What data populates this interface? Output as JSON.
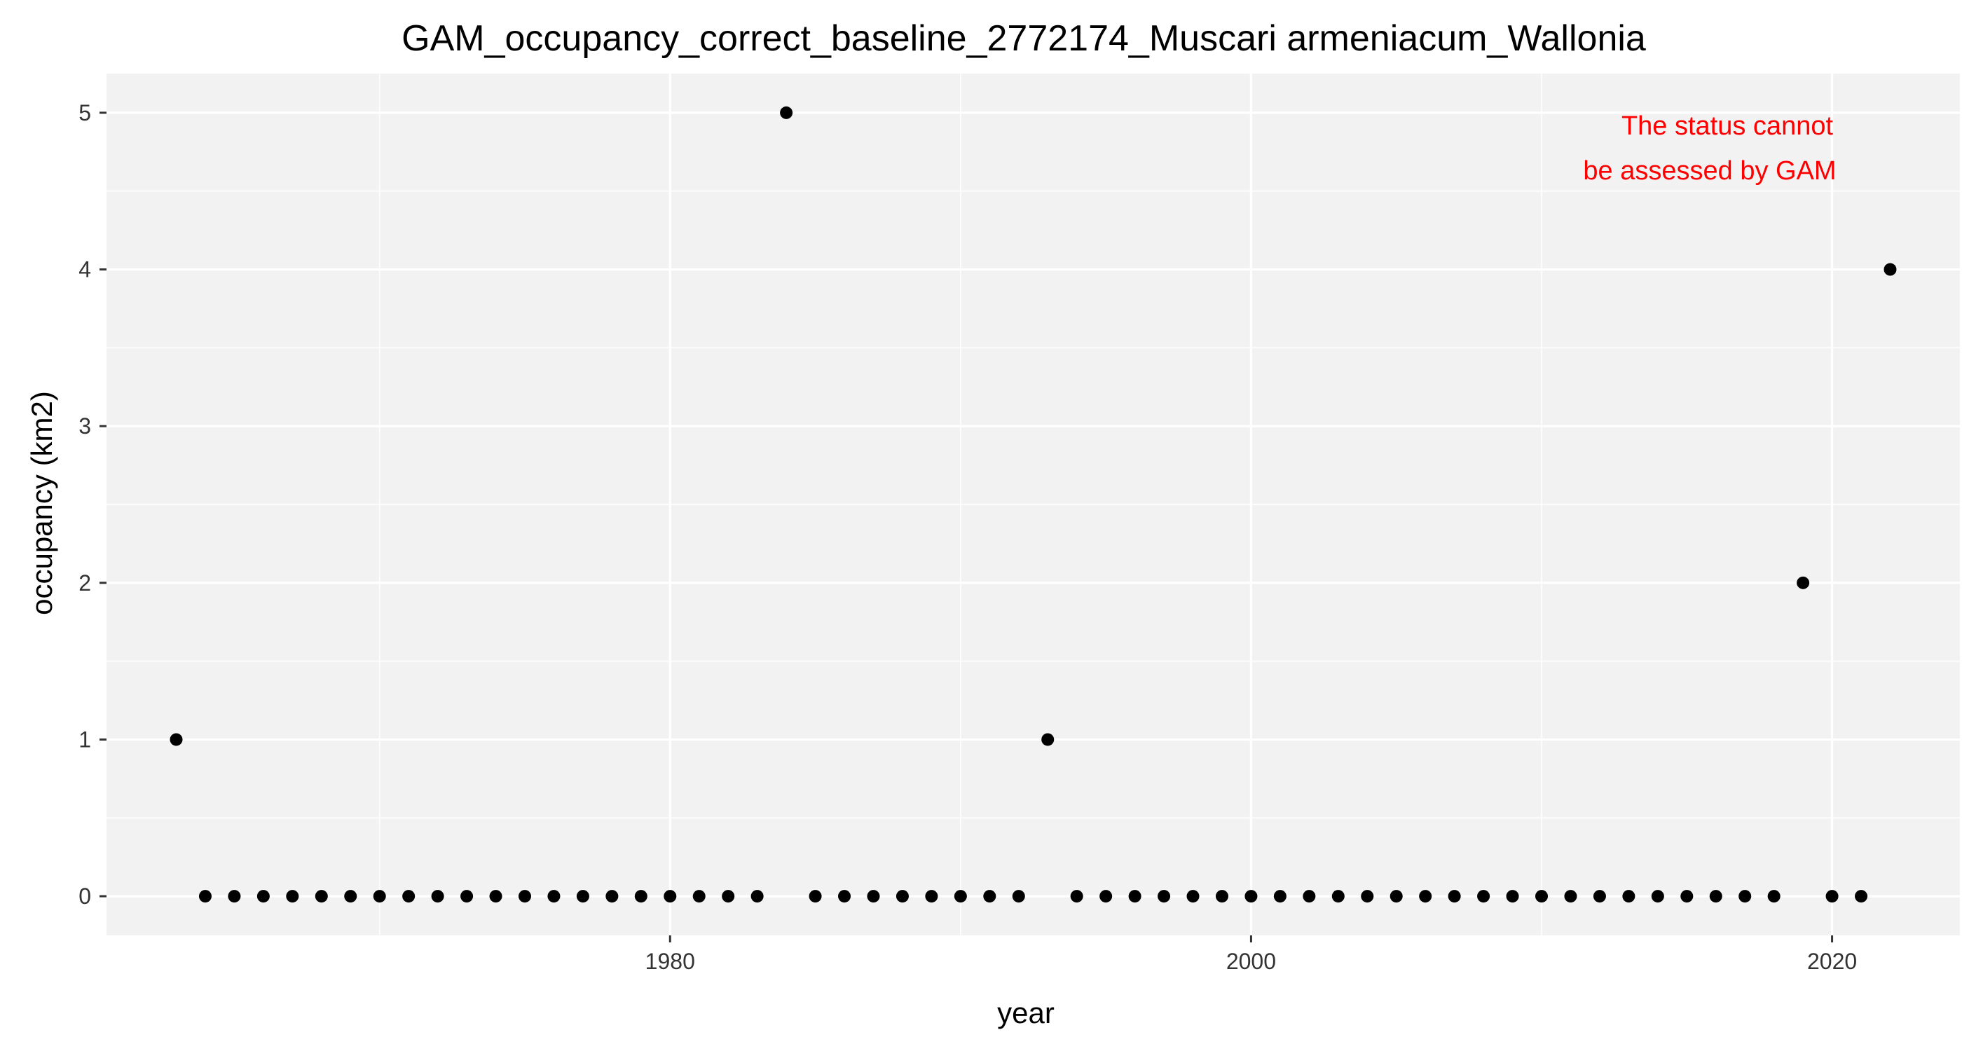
{
  "chart_data": {
    "type": "scatter",
    "title": "GAM_occupancy_correct_baseline_2772174_Muscari armeniacum_Wallonia",
    "xlabel": "year",
    "ylabel": "occupancy (km2)",
    "xlim": [
      1960.6,
      2024.4
    ],
    "ylim": [
      -0.25,
      5.25
    ],
    "x_ticks": [
      1980,
      2000,
      2020
    ],
    "y_ticks": [
      0,
      1,
      2,
      3,
      4,
      5
    ],
    "grid": true,
    "annotation": {
      "lines": [
        "The status cannot",
        "be assessed by GAM"
      ],
      "color": "#ff0000",
      "placement": "top-right"
    },
    "points": [
      {
        "x": 1963,
        "y": 1
      },
      {
        "x": 1964,
        "y": 0
      },
      {
        "x": 1965,
        "y": 0
      },
      {
        "x": 1966,
        "y": 0
      },
      {
        "x": 1967,
        "y": 0
      },
      {
        "x": 1968,
        "y": 0
      },
      {
        "x": 1969,
        "y": 0
      },
      {
        "x": 1970,
        "y": 0
      },
      {
        "x": 1971,
        "y": 0
      },
      {
        "x": 1972,
        "y": 0
      },
      {
        "x": 1973,
        "y": 0
      },
      {
        "x": 1974,
        "y": 0
      },
      {
        "x": 1975,
        "y": 0
      },
      {
        "x": 1976,
        "y": 0
      },
      {
        "x": 1977,
        "y": 0
      },
      {
        "x": 1978,
        "y": 0
      },
      {
        "x": 1979,
        "y": 0
      },
      {
        "x": 1980,
        "y": 0
      },
      {
        "x": 1981,
        "y": 0
      },
      {
        "x": 1982,
        "y": 0
      },
      {
        "x": 1983,
        "y": 0
      },
      {
        "x": 1984,
        "y": 5
      },
      {
        "x": 1985,
        "y": 0
      },
      {
        "x": 1986,
        "y": 0
      },
      {
        "x": 1987,
        "y": 0
      },
      {
        "x": 1988,
        "y": 0
      },
      {
        "x": 1989,
        "y": 0
      },
      {
        "x": 1990,
        "y": 0
      },
      {
        "x": 1991,
        "y": 0
      },
      {
        "x": 1992,
        "y": 0
      },
      {
        "x": 1993,
        "y": 1
      },
      {
        "x": 1994,
        "y": 0
      },
      {
        "x": 1995,
        "y": 0
      },
      {
        "x": 1996,
        "y": 0
      },
      {
        "x": 1997,
        "y": 0
      },
      {
        "x": 1998,
        "y": 0
      },
      {
        "x": 1999,
        "y": 0
      },
      {
        "x": 2000,
        "y": 0
      },
      {
        "x": 2001,
        "y": 0
      },
      {
        "x": 2002,
        "y": 0
      },
      {
        "x": 2003,
        "y": 0
      },
      {
        "x": 2004,
        "y": 0
      },
      {
        "x": 2005,
        "y": 0
      },
      {
        "x": 2006,
        "y": 0
      },
      {
        "x": 2007,
        "y": 0
      },
      {
        "x": 2008,
        "y": 0
      },
      {
        "x": 2009,
        "y": 0
      },
      {
        "x": 2010,
        "y": 0
      },
      {
        "x": 2011,
        "y": 0
      },
      {
        "x": 2012,
        "y": 0
      },
      {
        "x": 2013,
        "y": 0
      },
      {
        "x": 2014,
        "y": 0
      },
      {
        "x": 2015,
        "y": 0
      },
      {
        "x": 2016,
        "y": 0
      },
      {
        "x": 2017,
        "y": 0
      },
      {
        "x": 2018,
        "y": 0
      },
      {
        "x": 2019,
        "y": 2
      },
      {
        "x": 2020,
        "y": 0
      },
      {
        "x": 2021,
        "y": 0
      },
      {
        "x": 2022,
        "y": 4
      }
    ]
  },
  "colors": {
    "panel_background": "#f2f2f2",
    "grid": "#ffffff",
    "point": "#000000",
    "annotation": "#ff0000"
  }
}
